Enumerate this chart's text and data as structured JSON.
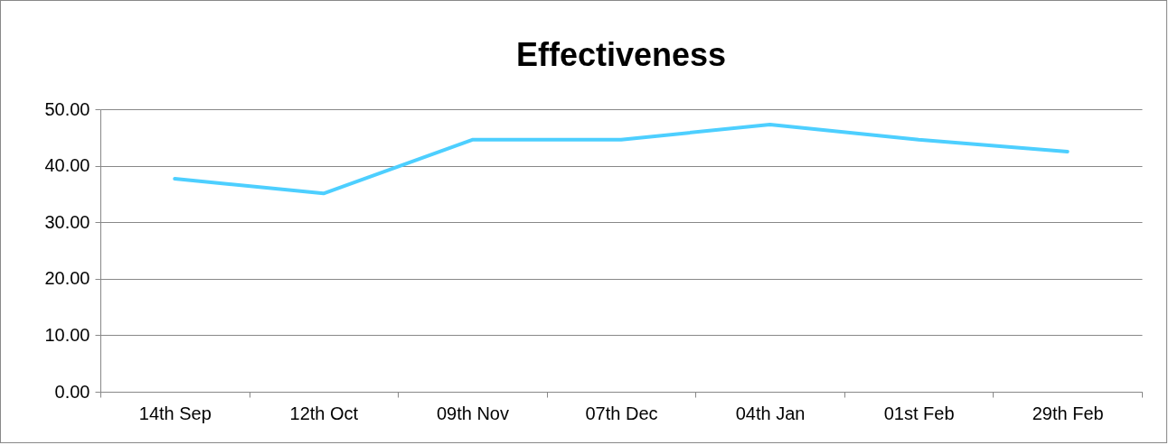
{
  "chart_data": {
    "type": "line",
    "title": "Effectiveness",
    "categories": [
      "14th Sep",
      "12th Oct",
      "09th Nov",
      "07th Dec",
      "04th Jan",
      "01st Feb",
      "29th Feb"
    ],
    "series": [
      {
        "color": "#4dcfff",
        "values": [
          37.7,
          35.1,
          44.6,
          44.6,
          47.3,
          44.6,
          42.5
        ]
      }
    ],
    "ylim": [
      0,
      50
    ],
    "yticks": [
      {
        "value": 0,
        "label": "0.00"
      },
      {
        "value": 10,
        "label": "10.00"
      },
      {
        "value": 20,
        "label": "20.00"
      },
      {
        "value": 30,
        "label": "30.00"
      },
      {
        "value": 40,
        "label": "40.00"
      },
      {
        "value": 50,
        "label": "50.00"
      }
    ],
    "grid": "y",
    "legend": false,
    "marker": "none",
    "line_style": "solid"
  }
}
